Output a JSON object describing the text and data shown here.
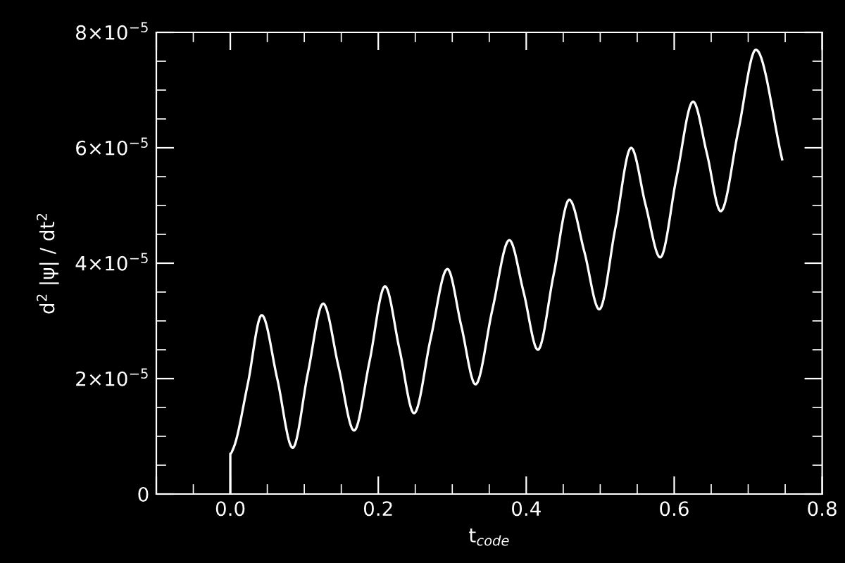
{
  "chart_data": {
    "type": "line",
    "xlabel": "t$_{code}$",
    "ylabel": "d$^{2}$ |ψ| / dt$^{2}$",
    "xlim": [
      -0.1,
      0.8
    ],
    "xticks": [
      {
        "value": -0.1,
        "label": null
      },
      {
        "value": 0.0,
        "label": "0.0"
      },
      {
        "value": 0.2,
        "label": "0.2"
      },
      {
        "value": 0.4,
        "label": "0.4"
      },
      {
        "value": 0.6,
        "label": "0.6"
      },
      {
        "value": 0.8,
        "label": "0.8"
      }
    ],
    "ylim": [
      0,
      8e-05
    ],
    "yticks": [
      {
        "value": 0,
        "label": "0"
      },
      {
        "value": 2e-05,
        "label": "2×10$^{−5}$"
      },
      {
        "value": 4e-05,
        "label": "4×10$^{−5}$"
      },
      {
        "value": 6e-05,
        "label": "6×10$^{−5}$"
      },
      {
        "value": 8e-05,
        "label": "8×10$^{−5}$"
      }
    ],
    "grid": false,
    "legend": false,
    "marker": "none",
    "line_style": "solid",
    "series": [
      {
        "color": "#ffffff",
        "x": [
          0.0,
          0.0,
          0.0044,
          0.0235,
          0.0425,
          0.0634,
          0.0843,
          0.1049,
          0.1255,
          0.1464,
          0.1673,
          0.1882,
          0.2091,
          0.2288,
          0.2484,
          0.2709,
          0.2934,
          0.3124,
          0.3314,
          0.3543,
          0.3771,
          0.3964,
          0.4157,
          0.437,
          0.4582,
          0.4785,
          0.4987,
          0.5203,
          0.5418,
          0.5615,
          0.5811,
          0.6033,
          0.6255,
          0.6442,
          0.6629,
          0.6867,
          0.7104,
          0.7459
        ],
        "values": [
          0,
          7e-06,
          8e-06,
          1.9e-05,
          3.1e-05,
          2e-05,
          8e-06,
          2.1e-05,
          3.3e-05,
          2.2e-05,
          1.1e-05,
          2.3e-05,
          3.6e-05,
          2.5e-05,
          1.4e-05,
          2.7e-05,
          3.9e-05,
          2.9e-05,
          1.9e-05,
          3.2e-05,
          4.4e-05,
          3.5e-05,
          2.5e-05,
          3.8e-05,
          5.1e-05,
          4.2e-05,
          3.2e-05,
          4.6e-05,
          6e-05,
          5e-05,
          4.1e-05,
          5.5e-05,
          6.8e-05,
          5.9e-05,
          4.9e-05,
          6.3e-05,
          7.7e-05,
          5.8e-05
        ]
      }
    ]
  }
}
